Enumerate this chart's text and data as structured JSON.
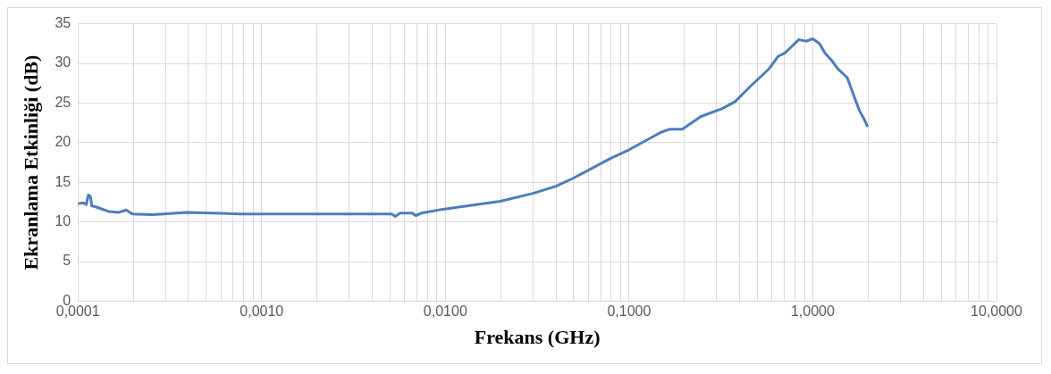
{
  "chart_data": {
    "type": "line",
    "xlabel": "Frekans (GHz)",
    "ylabel": "Ekranlama Etkinliği (dB)",
    "log": "x",
    "grid": true,
    "legend": false,
    "marker": "none",
    "line_style": "solid",
    "xlim": [
      0.0001,
      10
    ],
    "ylim": [
      0,
      35
    ],
    "yticks": [
      0,
      5,
      10,
      15,
      20,
      25,
      30,
      35
    ],
    "xticks": [
      {
        "value": 0.0001,
        "label": "0,0001"
      },
      {
        "value": 0.0002,
        "label": null
      },
      {
        "value": 0.0003,
        "label": null
      },
      {
        "value": 0.0004,
        "label": null
      },
      {
        "value": 0.0005,
        "label": null
      },
      {
        "value": 0.0006,
        "label": null
      },
      {
        "value": 0.0007,
        "label": null
      },
      {
        "value": 0.0008,
        "label": null
      },
      {
        "value": 0.0009,
        "label": null
      },
      {
        "value": 0.001,
        "label": "0,0010"
      },
      {
        "value": 0.002,
        "label": null
      },
      {
        "value": 0.003,
        "label": null
      },
      {
        "value": 0.004,
        "label": null
      },
      {
        "value": 0.005,
        "label": null
      },
      {
        "value": 0.006,
        "label": null
      },
      {
        "value": 0.007,
        "label": null
      },
      {
        "value": 0.008,
        "label": null
      },
      {
        "value": 0.009,
        "label": null
      },
      {
        "value": 0.01,
        "label": "0,0100"
      },
      {
        "value": 0.02,
        "label": null
      },
      {
        "value": 0.03,
        "label": null
      },
      {
        "value": 0.04,
        "label": null
      },
      {
        "value": 0.05,
        "label": null
      },
      {
        "value": 0.06,
        "label": null
      },
      {
        "value": 0.07,
        "label": null
      },
      {
        "value": 0.08,
        "label": null
      },
      {
        "value": 0.09,
        "label": null
      },
      {
        "value": 0.1,
        "label": "0,1000"
      },
      {
        "value": 0.2,
        "label": null
      },
      {
        "value": 0.3,
        "label": null
      },
      {
        "value": 0.4,
        "label": null
      },
      {
        "value": 0.5,
        "label": null
      },
      {
        "value": 0.6,
        "label": null
      },
      {
        "value": 0.7,
        "label": null
      },
      {
        "value": 0.8,
        "label": null
      },
      {
        "value": 0.9,
        "label": null
      },
      {
        "value": 1,
        "label": "1,0000"
      },
      {
        "value": 2,
        "label": null
      },
      {
        "value": 3,
        "label": null
      },
      {
        "value": 4,
        "label": null
      },
      {
        "value": 5,
        "label": null
      },
      {
        "value": 6,
        "label": null
      },
      {
        "value": 7,
        "label": null
      },
      {
        "value": 8,
        "label": null
      },
      {
        "value": 9,
        "label": null
      },
      {
        "value": 10,
        "label": "10,0000"
      }
    ],
    "series": [
      {
        "color": "#4a7ebb",
        "x": [
          0.0001,
          0.000107,
          0.000111,
          0.000114,
          0.000117,
          0.000119,
          0.000125,
          0.000148,
          0.000167,
          0.000183,
          0.000198,
          0.000254,
          0.000293,
          0.000387,
          0.000547,
          0.00077,
          0.00173,
          0.0037,
          0.0051,
          0.00535,
          0.00567,
          0.0066,
          0.0069,
          0.0074,
          0.0097,
          0.0199,
          0.03,
          0.04,
          0.0496,
          0.079,
          0.1,
          0.149,
          0.167,
          0.195,
          0.246,
          0.322,
          0.379,
          0.457,
          0.514,
          0.577,
          0.649,
          0.705,
          0.773,
          0.839,
          0.92,
          1.0,
          1.087,
          1.165,
          1.265,
          1.37,
          1.54,
          1.65,
          1.79,
          1.9,
          1.99
        ],
        "values": [
          12.3,
          12.4,
          12.2,
          13.4,
          13.2,
          12.0,
          11.9,
          11.3,
          11.2,
          11.5,
          11.0,
          10.9,
          11.0,
          11.2,
          11.1,
          11.0,
          11.0,
          11.0,
          11.0,
          10.7,
          11.1,
          11.1,
          10.8,
          11.1,
          11.6,
          12.6,
          13.6,
          14.5,
          15.5,
          18.0,
          19.1,
          21.3,
          21.7,
          21.7,
          23.3,
          24.3,
          25.2,
          27.1,
          28.2,
          29.3,
          30.9,
          31.3,
          32.2,
          33.0,
          32.8,
          33.1,
          32.5,
          31.3,
          30.4,
          29.3,
          28.2,
          26.3,
          24.1,
          23.0,
          22.0
        ]
      }
    ]
  }
}
